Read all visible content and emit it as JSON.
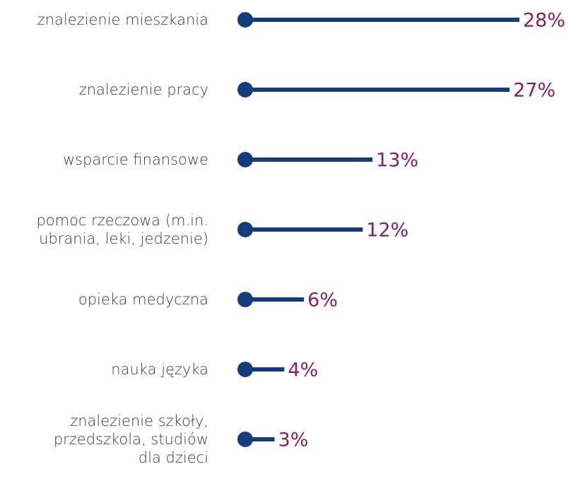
{
  "chart_data": {
    "type": "lollipop",
    "categories": [
      "znalezienie mieszkania",
      "znalezienie pracy",
      "wsparcie  finansowe",
      "pomoc rzeczowa (m.in.\nubrania, leki, jedzenie)",
      "opieka medyczna",
      "nauka  języka",
      "znalezienie szkoły,\nprzedszkola, studiów\ndla dzieci"
    ],
    "values": [
      28,
      27,
      13,
      12,
      6,
      4,
      3
    ],
    "value_labels": [
      "28%",
      "27%",
      "13%",
      "12%",
      "6%",
      "4%",
      "3%"
    ],
    "color": "#143c7c",
    "label_color": "#8c1d5e"
  }
}
